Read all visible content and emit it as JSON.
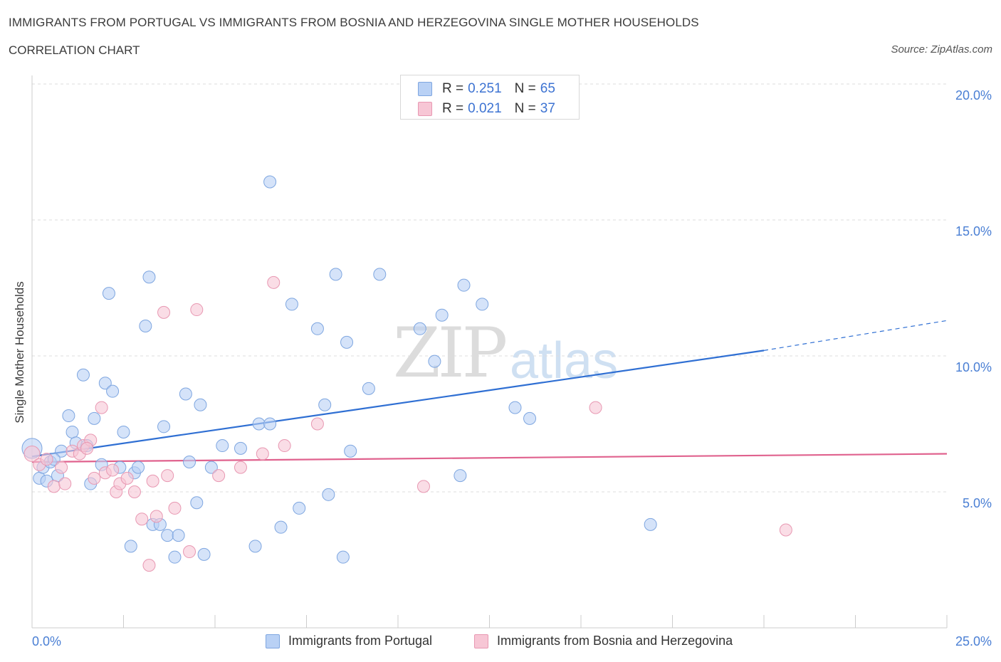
{
  "title": "IMMIGRANTS FROM PORTUGAL VS IMMIGRANTS FROM BOSNIA AND HERZEGOVINA SINGLE MOTHER HOUSEHOLDS",
  "subtitle": "CORRELATION CHART",
  "source": "Source: ZipAtlas.com",
  "watermark": {
    "zip": "ZIP",
    "atlas": "atlas"
  },
  "legend": {
    "rows": [
      {
        "r_label": "R = ",
        "r_value": "0.251",
        "n_label": "N = ",
        "n_value": "65"
      },
      {
        "r_label": "R = ",
        "r_value": "0.021",
        "n_label": "N = ",
        "n_value": "37"
      }
    ]
  },
  "colors": {
    "blue_fill": "#b9d1f5",
    "blue_stroke": "#7ea6e0",
    "blue_line": "#2f6fd3",
    "pink_fill": "#f7c6d5",
    "pink_stroke": "#e898b2",
    "pink_line": "#e0628e",
    "grid": "#dddddd",
    "axis_text": "#4a7fd4"
  },
  "chart_data": {
    "type": "scatter",
    "title": "IMMIGRANTS FROM PORTUGAL VS IMMIGRANTS FROM BOSNIA AND HERZEGOVINA SINGLE MOTHER HOUSEHOLDS",
    "xlabel": "",
    "ylabel": "Single Mother Households",
    "xlim": [
      0,
      25
    ],
    "ylim": [
      0,
      20
    ],
    "x_tick_labels": [
      "0.0%",
      "25.0%"
    ],
    "y_tick_labels": [
      "5.0%",
      "10.0%",
      "15.0%",
      "20.0%"
    ],
    "y_ticks": [
      5,
      10,
      15,
      20
    ],
    "grid": true,
    "legend_position": "top-center",
    "series": [
      {
        "name": "Immigrants from Portugal",
        "color": "#b9d1f5",
        "trend": {
          "x": [
            0,
            20
          ],
          "y": [
            6.3,
            10.2
          ],
          "dashed_to": [
            25,
            11.3
          ]
        },
        "points": [
          [
            0.0,
            6.6
          ],
          [
            0.2,
            5.5
          ],
          [
            0.3,
            5.9
          ],
          [
            0.4,
            5.4
          ],
          [
            0.5,
            6.1
          ],
          [
            0.7,
            5.6
          ],
          [
            0.8,
            6.5
          ],
          [
            1.0,
            7.8
          ],
          [
            1.1,
            7.2
          ],
          [
            1.2,
            6.8
          ],
          [
            1.4,
            9.3
          ],
          [
            1.5,
            6.7
          ],
          [
            1.6,
            5.3
          ],
          [
            1.7,
            7.7
          ],
          [
            1.9,
            6.0
          ],
          [
            2.0,
            9.0
          ],
          [
            2.1,
            12.3
          ],
          [
            2.2,
            8.7
          ],
          [
            2.4,
            5.9
          ],
          [
            2.5,
            7.2
          ],
          [
            2.7,
            3.0
          ],
          [
            2.8,
            5.7
          ],
          [
            2.9,
            5.9
          ],
          [
            3.1,
            11.1
          ],
          [
            3.2,
            12.9
          ],
          [
            3.3,
            3.8
          ],
          [
            3.5,
            3.8
          ],
          [
            3.6,
            7.4
          ],
          [
            3.7,
            3.4
          ],
          [
            3.9,
            2.6
          ],
          [
            4.0,
            3.4
          ],
          [
            4.2,
            8.6
          ],
          [
            4.3,
            6.1
          ],
          [
            4.5,
            4.6
          ],
          [
            4.6,
            8.2
          ],
          [
            4.7,
            2.7
          ],
          [
            4.9,
            5.9
          ],
          [
            5.2,
            6.7
          ],
          [
            5.7,
            6.6
          ],
          [
            6.1,
            3.0
          ],
          [
            6.2,
            7.5
          ],
          [
            6.5,
            7.5
          ],
          [
            6.5,
            16.4
          ],
          [
            6.8,
            3.7
          ],
          [
            7.1,
            11.9
          ],
          [
            7.3,
            4.4
          ],
          [
            7.8,
            11.0
          ],
          [
            8.0,
            8.2
          ],
          [
            8.1,
            4.9
          ],
          [
            8.3,
            13.0
          ],
          [
            8.5,
            2.6
          ],
          [
            8.6,
            10.5
          ],
          [
            8.7,
            6.5
          ],
          [
            9.2,
            8.8
          ],
          [
            9.5,
            13.0
          ],
          [
            10.6,
            11.0
          ],
          [
            11.0,
            9.8
          ],
          [
            11.2,
            11.5
          ],
          [
            11.7,
            5.6
          ],
          [
            11.8,
            12.6
          ],
          [
            12.3,
            11.9
          ],
          [
            13.2,
            8.1
          ],
          [
            13.6,
            7.7
          ],
          [
            16.9,
            3.8
          ],
          [
            0.6,
            6.2
          ]
        ]
      },
      {
        "name": "Immigrants from Bosnia and Herzegovina",
        "color": "#f7c6d5",
        "trend": {
          "x": [
            0,
            25
          ],
          "y": [
            6.1,
            6.4
          ]
        },
        "points": [
          [
            0.0,
            6.4
          ],
          [
            0.2,
            6.0
          ],
          [
            0.4,
            6.2
          ],
          [
            0.6,
            5.2
          ],
          [
            0.8,
            5.9
          ],
          [
            0.9,
            5.3
          ],
          [
            1.1,
            6.5
          ],
          [
            1.3,
            6.4
          ],
          [
            1.4,
            6.7
          ],
          [
            1.6,
            6.9
          ],
          [
            1.7,
            5.5
          ],
          [
            1.9,
            8.1
          ],
          [
            2.0,
            5.7
          ],
          [
            2.2,
            5.8
          ],
          [
            2.3,
            5.0
          ],
          [
            2.4,
            5.3
          ],
          [
            2.6,
            5.5
          ],
          [
            2.8,
            5.0
          ],
          [
            3.0,
            4.0
          ],
          [
            3.2,
            2.3
          ],
          [
            3.3,
            5.4
          ],
          [
            3.4,
            4.1
          ],
          [
            3.6,
            11.6
          ],
          [
            3.7,
            5.6
          ],
          [
            3.9,
            4.4
          ],
          [
            4.3,
            2.8
          ],
          [
            4.5,
            11.7
          ],
          [
            5.1,
            5.6
          ],
          [
            5.7,
            5.9
          ],
          [
            6.3,
            6.4
          ],
          [
            6.6,
            12.7
          ],
          [
            6.9,
            6.7
          ],
          [
            7.8,
            7.5
          ],
          [
            10.7,
            5.2
          ],
          [
            15.4,
            8.1
          ],
          [
            20.6,
            3.6
          ],
          [
            1.5,
            6.6
          ]
        ]
      }
    ]
  },
  "bottom_legend": {
    "portugal": "Immigrants from Portugal",
    "bosnia": "Immigrants from Bosnia and Herzegovina"
  }
}
